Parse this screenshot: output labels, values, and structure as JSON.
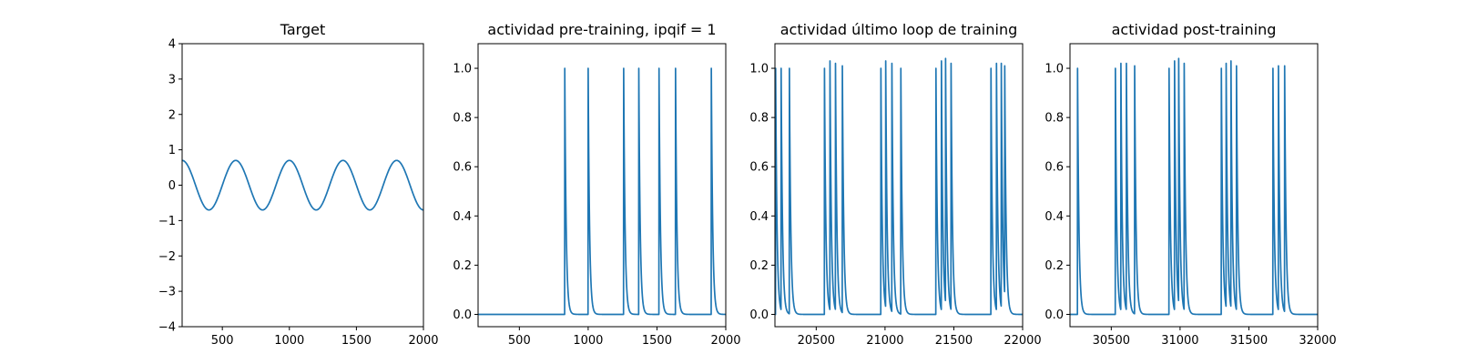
{
  "colors": {
    "line": "#1f77b4",
    "axes": "#000000",
    "background": "#ffffff"
  },
  "chart_data": [
    {
      "type": "line",
      "title": "Target",
      "xlabel": "",
      "ylabel": "",
      "xlim": [
        200,
        2000
      ],
      "ylim": [
        -4,
        4
      ],
      "xticks": [
        500,
        1000,
        1500,
        2000
      ],
      "xtick_labels": [
        "500",
        "1000",
        "1500",
        "2000"
      ],
      "yticks": [
        -4,
        -3,
        -2,
        -1,
        0,
        1,
        2,
        3,
        4
      ],
      "ytick_labels": [
        "−4",
        "−3",
        "−2",
        "−1",
        "0",
        "1",
        "2",
        "3",
        "4"
      ],
      "grid": false,
      "series": [
        {
          "kind": "sine",
          "amplitude": 0.7,
          "period": 400,
          "peaks_at": [
            200,
            600,
            1000,
            1400,
            1800
          ],
          "x_range": [
            200,
            2000
          ]
        }
      ]
    },
    {
      "type": "line",
      "title": "actividad pre-training, ipqif = 1",
      "xlabel": "",
      "ylabel": "",
      "xlim": [
        200,
        2000
      ],
      "ylim": [
        -0.05,
        1.1
      ],
      "xticks": [
        500,
        1000,
        1500,
        2000
      ],
      "xtick_labels": [
        "500",
        "1000",
        "1500",
        "2000"
      ],
      "yticks": [
        0.0,
        0.2,
        0.4,
        0.6,
        0.8,
        1.0
      ],
      "ytick_labels": [
        "0.0",
        "0.2",
        "0.4",
        "0.6",
        "0.8",
        "1.0"
      ],
      "grid": false,
      "series": [
        {
          "kind": "spikes",
          "baseline": 0,
          "decay": 10,
          "x_range": [
            200,
            2000
          ],
          "spikes": [
            [
              830,
              1.0
            ],
            [
              1000,
              1.0
            ],
            [
              1258,
              1.0
            ],
            [
              1368,
              1.0
            ],
            [
              1515,
              1.0
            ],
            [
              1635,
              1.0
            ],
            [
              1895,
              1.0
            ]
          ]
        }
      ]
    },
    {
      "type": "line",
      "title": "actividad último loop de training",
      "xlabel": "",
      "ylabel": "",
      "xlim": [
        20200,
        22000
      ],
      "ylim": [
        -0.05,
        1.1
      ],
      "xticks": [
        20500,
        21000,
        21500,
        22000
      ],
      "xtick_labels": [
        "20500",
        "21000",
        "21500",
        "22000"
      ],
      "yticks": [
        0.0,
        0.2,
        0.4,
        0.6,
        0.8,
        1.0
      ],
      "ytick_labels": [
        "0.0",
        "0.2",
        "0.4",
        "0.6",
        "0.8",
        "1.0"
      ],
      "grid": false,
      "series": [
        {
          "kind": "spikes",
          "baseline": 0,
          "decay": 10,
          "x_range": [
            20200,
            22000
          ],
          "spikes": [
            [
              20205,
              1.0
            ],
            [
              20245,
              1.0
            ],
            [
              20305,
              1.0
            ],
            [
              20560,
              1.0
            ],
            [
              20600,
              1.03
            ],
            [
              20640,
              1.02
            ],
            [
              20690,
              1.01
            ],
            [
              20970,
              1.0
            ],
            [
              21005,
              1.03
            ],
            [
              21050,
              1.02
            ],
            [
              21115,
              1.0
            ],
            [
              21370,
              1.0
            ],
            [
              21410,
              1.03
            ],
            [
              21440,
              1.04
            ],
            [
              21480,
              1.02
            ],
            [
              21770,
              1.0
            ],
            [
              21810,
              1.02
            ],
            [
              21845,
              1.02
            ],
            [
              21870,
              1.01
            ]
          ]
        }
      ]
    },
    {
      "type": "line",
      "title": "actividad post-training",
      "xlabel": "",
      "ylabel": "",
      "xlim": [
        30200,
        32000
      ],
      "ylim": [
        -0.05,
        1.1
      ],
      "xticks": [
        30500,
        31000,
        31500,
        32000
      ],
      "xtick_labels": [
        "30500",
        "31000",
        "31500",
        "32000"
      ],
      "yticks": [
        0.0,
        0.2,
        0.4,
        0.6,
        0.8,
        1.0
      ],
      "ytick_labels": [
        "0.0",
        "0.2",
        "0.4",
        "0.6",
        "0.8",
        "1.0"
      ],
      "grid": false,
      "series": [
        {
          "kind": "spikes",
          "baseline": 0,
          "decay": 10,
          "x_range": [
            30200,
            32000
          ],
          "spikes": [
            [
              30255,
              1.0
            ],
            [
              30530,
              1.0
            ],
            [
              30570,
              1.02
            ],
            [
              30610,
              1.02
            ],
            [
              30670,
              1.01
            ],
            [
              30920,
              1.0
            ],
            [
              30960,
              1.03
            ],
            [
              30990,
              1.04
            ],
            [
              31030,
              1.02
            ],
            [
              31300,
              1.0
            ],
            [
              31335,
              1.02
            ],
            [
              31370,
              1.03
            ],
            [
              31410,
              1.01
            ],
            [
              31675,
              1.0
            ],
            [
              31715,
              1.01
            ],
            [
              31760,
              1.01
            ]
          ]
        }
      ]
    }
  ]
}
